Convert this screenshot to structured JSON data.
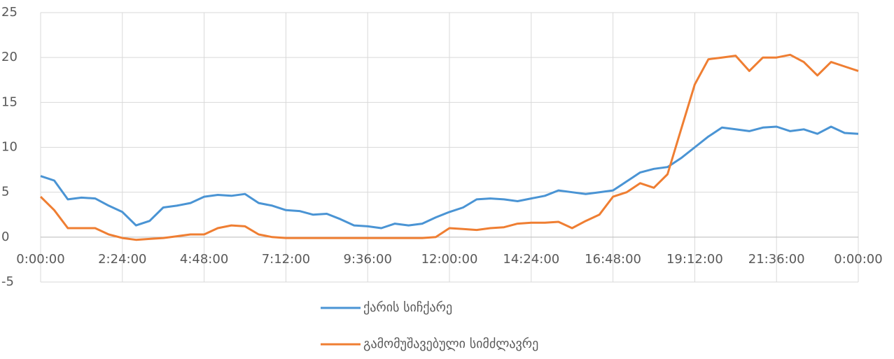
{
  "chart_data": {
    "type": "line",
    "x": [
      0,
      24,
      48,
      72,
      96,
      120,
      144,
      168,
      192,
      216,
      240,
      264,
      288,
      312,
      336,
      360,
      384,
      408,
      432,
      456,
      480,
      504,
      528,
      552,
      576,
      600,
      624,
      648,
      672,
      696,
      720,
      744,
      768,
      792,
      816,
      840,
      864,
      888,
      912,
      936,
      960,
      984,
      1008,
      1032,
      1056,
      1080,
      1104,
      1128,
      1152,
      1176,
      1200,
      1224,
      1248,
      1272,
      1296,
      1320,
      1344,
      1368,
      1392,
      1416,
      1440
    ],
    "series": [
      {
        "name": "ქარის სიჩქარე",
        "color": "#4a94d4",
        "values": [
          6.8,
          6.3,
          4.2,
          4.4,
          4.3,
          3.5,
          2.8,
          1.3,
          1.8,
          3.3,
          3.5,
          3.8,
          4.5,
          4.7,
          4.6,
          4.8,
          3.8,
          3.5,
          3.0,
          2.9,
          2.5,
          2.6,
          2.0,
          1.3,
          1.2,
          1.0,
          1.5,
          1.3,
          1.5,
          2.2,
          2.8,
          3.3,
          4.2,
          4.3,
          4.2,
          4.0,
          4.3,
          4.6,
          5.2,
          5.0,
          4.8,
          5.0,
          5.2,
          6.2,
          7.2,
          7.6,
          7.8,
          8.8,
          10.0,
          11.2,
          12.2,
          12.0,
          11.8,
          12.2,
          12.3,
          11.8,
          12.0,
          11.5,
          12.3,
          11.6,
          11.5
        ]
      },
      {
        "name": "გამომუშავებული სიმძლავრე",
        "color": "#ef7e32",
        "values": [
          4.5,
          3.0,
          1.0,
          1.0,
          1.0,
          0.3,
          -0.1,
          -0.3,
          -0.2,
          -0.1,
          0.1,
          0.3,
          0.3,
          1.0,
          1.3,
          1.2,
          0.3,
          0.0,
          -0.1,
          -0.1,
          -0.1,
          -0.1,
          -0.1,
          -0.1,
          -0.1,
          -0.1,
          -0.1,
          -0.1,
          -0.1,
          0.0,
          1.0,
          0.9,
          0.8,
          1.0,
          1.1,
          1.5,
          1.6,
          1.6,
          1.7,
          1.0,
          1.8,
          2.5,
          4.5,
          5.0,
          6.0,
          5.5,
          7.0,
          12.0,
          17.0,
          19.8,
          20.0,
          20.2,
          18.5,
          20.0,
          20.0,
          20.3,
          19.5,
          18.0,
          19.5,
          19.0,
          18.5
        ]
      }
    ],
    "xlim": [
      0,
      1440
    ],
    "xticks": [
      {
        "value": 0,
        "label": "0:00:00"
      },
      {
        "value": 144,
        "label": "2:24:00"
      },
      {
        "value": 288,
        "label": "4:48:00"
      },
      {
        "value": 432,
        "label": "7:12:00"
      },
      {
        "value": 576,
        "label": "9:36:00"
      },
      {
        "value": 720,
        "label": "12:00:00"
      },
      {
        "value": 864,
        "label": "14:24:00"
      },
      {
        "value": 1008,
        "label": "16:48:00"
      },
      {
        "value": 1152,
        "label": "19:12:00"
      },
      {
        "value": 1296,
        "label": "21:36:00"
      },
      {
        "value": 1440,
        "label": "0:00:00"
      }
    ],
    "ylim": [
      -5,
      25
    ],
    "yticks": [
      -5,
      0,
      5,
      10,
      15,
      20,
      25
    ],
    "grid": true
  }
}
